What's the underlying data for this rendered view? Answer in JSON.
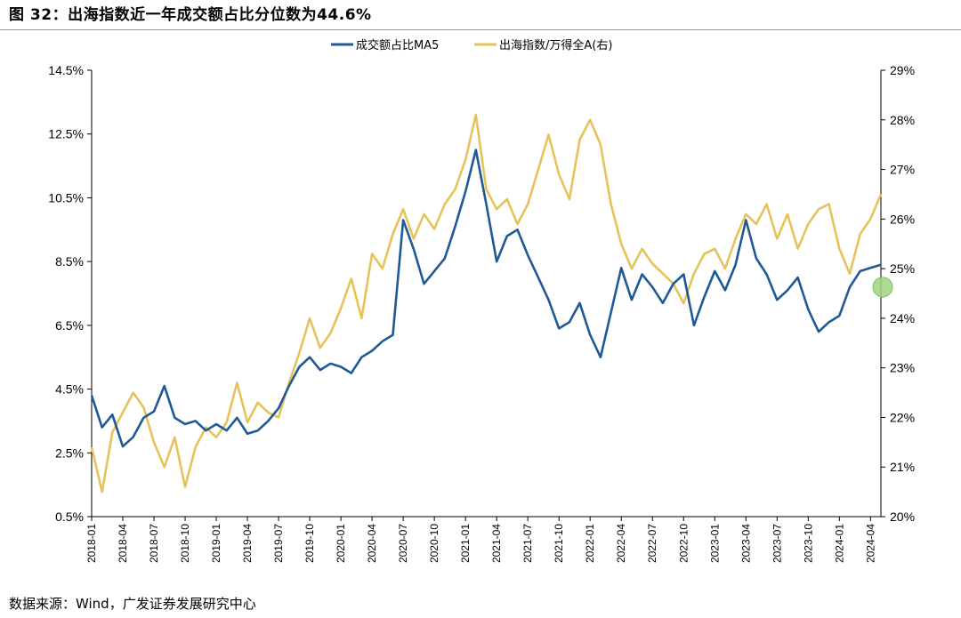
{
  "title": "图 32：出海指数近一年成交额占比分位数为44.6%",
  "source": "数据来源：Wind，广发证券发展研究中心",
  "colors": {
    "left_series": "#1f5a96",
    "right_series": "#e6c35a",
    "marker": "#9fd483"
  },
  "chart_data": {
    "type": "line",
    "title": "出海指数近一年成交额占比分位数为44.6%",
    "x_range": [
      "2018-01",
      "2024-05"
    ],
    "x_ticks": [
      "2018-01",
      "2018-04",
      "2018-07",
      "2018-10",
      "2019-01",
      "2019-04",
      "2019-07",
      "2019-10",
      "2020-01",
      "2020-04",
      "2020-07",
      "2020-10",
      "2021-01",
      "2021-04",
      "2021-07",
      "2021-10",
      "2022-01",
      "2022-04",
      "2022-07",
      "2022-10",
      "2023-01",
      "2023-04",
      "2023-07",
      "2023-10",
      "2024-01",
      "2024-04"
    ],
    "y_left": {
      "min": 0.5,
      "max": 14.5,
      "ticks": [
        "0.5%",
        "2.5%",
        "4.5%",
        "6.5%",
        "8.5%",
        "10.5%",
        "12.5%",
        "14.5%"
      ]
    },
    "y_right": {
      "min": 20,
      "max": 29,
      "ticks": [
        "20%",
        "21%",
        "22%",
        "23%",
        "24%",
        "25%",
        "26%",
        "27%",
        "28%",
        "29%"
      ]
    },
    "legend": [
      "成交额占比MA5",
      "出海指数/万得全A(右)"
    ],
    "legend_position": "top-center",
    "grid": false,
    "series": [
      {
        "name": "成交额占比MA5",
        "axis": "left",
        "data": [
          [
            "2018-01",
            4.3
          ],
          [
            "2018-02",
            3.3
          ],
          [
            "2018-03",
            3.7
          ],
          [
            "2018-04",
            2.7
          ],
          [
            "2018-05",
            3.0
          ],
          [
            "2018-06",
            3.6
          ],
          [
            "2018-07",
            3.8
          ],
          [
            "2018-08",
            4.6
          ],
          [
            "2018-09",
            3.6
          ],
          [
            "2018-10",
            3.4
          ],
          [
            "2018-11",
            3.5
          ],
          [
            "2018-12",
            3.2
          ],
          [
            "2019-01",
            3.4
          ],
          [
            "2019-02",
            3.2
          ],
          [
            "2019-03",
            3.6
          ],
          [
            "2019-04",
            3.1
          ],
          [
            "2019-05",
            3.2
          ],
          [
            "2019-06",
            3.5
          ],
          [
            "2019-07",
            3.9
          ],
          [
            "2019-08",
            4.6
          ],
          [
            "2019-09",
            5.2
          ],
          [
            "2019-10",
            5.5
          ],
          [
            "2019-11",
            5.1
          ],
          [
            "2019-12",
            5.3
          ],
          [
            "2020-01",
            5.2
          ],
          [
            "2020-02",
            5.0
          ],
          [
            "2020-03",
            5.5
          ],
          [
            "2020-04",
            5.7
          ],
          [
            "2020-05",
            6.0
          ],
          [
            "2020-06",
            6.2
          ],
          [
            "2020-07",
            9.8
          ],
          [
            "2020-08",
            8.9
          ],
          [
            "2020-09",
            7.8
          ],
          [
            "2020-10",
            8.2
          ],
          [
            "2020-11",
            8.6
          ],
          [
            "2020-12",
            9.6
          ],
          [
            "2021-01",
            10.7
          ],
          [
            "2021-02",
            12.0
          ],
          [
            "2021-03",
            10.3
          ],
          [
            "2021-04",
            8.5
          ],
          [
            "2021-05",
            9.3
          ],
          [
            "2021-06",
            9.5
          ],
          [
            "2021-07",
            8.7
          ],
          [
            "2021-08",
            8.0
          ],
          [
            "2021-09",
            7.3
          ],
          [
            "2021-10",
            6.4
          ],
          [
            "2021-11",
            6.6
          ],
          [
            "2021-12",
            7.2
          ],
          [
            "2022-01",
            6.2
          ],
          [
            "2022-02",
            5.5
          ],
          [
            "2022-03",
            6.9
          ],
          [
            "2022-04",
            8.3
          ],
          [
            "2022-05",
            7.3
          ],
          [
            "2022-06",
            8.1
          ],
          [
            "2022-07",
            7.7
          ],
          [
            "2022-08",
            7.2
          ],
          [
            "2022-09",
            7.8
          ],
          [
            "2022-10",
            8.1
          ],
          [
            "2022-11",
            6.5
          ],
          [
            "2022-12",
            7.4
          ],
          [
            "2023-01",
            8.2
          ],
          [
            "2023-02",
            7.6
          ],
          [
            "2023-03",
            8.4
          ],
          [
            "2023-04",
            9.8
          ],
          [
            "2023-05",
            8.6
          ],
          [
            "2023-06",
            8.1
          ],
          [
            "2023-07",
            7.3
          ],
          [
            "2023-08",
            7.6
          ],
          [
            "2023-09",
            8.0
          ],
          [
            "2023-10",
            7.0
          ],
          [
            "2023-11",
            6.3
          ],
          [
            "2023-12",
            6.6
          ],
          [
            "2024-01",
            6.8
          ],
          [
            "2024-02",
            7.7
          ],
          [
            "2024-03",
            8.2
          ],
          [
            "2024-04",
            8.3
          ],
          [
            "2024-05",
            8.4
          ]
        ]
      },
      {
        "name": "出海指数/万得全A(右)",
        "axis": "right",
        "data": [
          [
            "2018-01",
            21.4
          ],
          [
            "2018-02",
            20.5
          ],
          [
            "2018-03",
            21.7
          ],
          [
            "2018-04",
            22.1
          ],
          [
            "2018-05",
            22.5
          ],
          [
            "2018-06",
            22.2
          ],
          [
            "2018-07",
            21.5
          ],
          [
            "2018-08",
            21.0
          ],
          [
            "2018-09",
            21.6
          ],
          [
            "2018-10",
            20.6
          ],
          [
            "2018-11",
            21.4
          ],
          [
            "2018-12",
            21.8
          ],
          [
            "2019-01",
            21.6
          ],
          [
            "2019-02",
            21.9
          ],
          [
            "2019-03",
            22.7
          ],
          [
            "2019-04",
            21.9
          ],
          [
            "2019-05",
            22.3
          ],
          [
            "2019-06",
            22.1
          ],
          [
            "2019-07",
            22.0
          ],
          [
            "2019-08",
            22.7
          ],
          [
            "2019-09",
            23.3
          ],
          [
            "2019-10",
            24.0
          ],
          [
            "2019-11",
            23.4
          ],
          [
            "2019-12",
            23.7
          ],
          [
            "2020-01",
            24.2
          ],
          [
            "2020-02",
            24.8
          ],
          [
            "2020-03",
            24.0
          ],
          [
            "2020-04",
            25.3
          ],
          [
            "2020-05",
            25.0
          ],
          [
            "2020-06",
            25.7
          ],
          [
            "2020-07",
            26.2
          ],
          [
            "2020-08",
            25.6
          ],
          [
            "2020-09",
            26.1
          ],
          [
            "2020-10",
            25.8
          ],
          [
            "2020-11",
            26.3
          ],
          [
            "2020-12",
            26.6
          ],
          [
            "2021-01",
            27.2
          ],
          [
            "2021-02",
            28.1
          ],
          [
            "2021-03",
            26.6
          ],
          [
            "2021-04",
            26.2
          ],
          [
            "2021-05",
            26.4
          ],
          [
            "2021-06",
            25.9
          ],
          [
            "2021-07",
            26.3
          ],
          [
            "2021-08",
            27.0
          ],
          [
            "2021-09",
            27.7
          ],
          [
            "2021-10",
            26.9
          ],
          [
            "2021-11",
            26.4
          ],
          [
            "2021-12",
            27.6
          ],
          [
            "2022-01",
            28.0
          ],
          [
            "2022-02",
            27.5
          ],
          [
            "2022-03",
            26.3
          ],
          [
            "2022-04",
            25.5
          ],
          [
            "2022-05",
            25.0
          ],
          [
            "2022-06",
            25.4
          ],
          [
            "2022-07",
            25.1
          ],
          [
            "2022-08",
            24.9
          ],
          [
            "2022-09",
            24.7
          ],
          [
            "2022-10",
            24.3
          ],
          [
            "2022-11",
            24.9
          ],
          [
            "2022-12",
            25.3
          ],
          [
            "2023-01",
            25.4
          ],
          [
            "2023-02",
            25.0
          ],
          [
            "2023-03",
            25.6
          ],
          [
            "2023-04",
            26.1
          ],
          [
            "2023-05",
            25.9
          ],
          [
            "2023-06",
            26.3
          ],
          [
            "2023-07",
            25.6
          ],
          [
            "2023-08",
            26.1
          ],
          [
            "2023-09",
            25.4
          ],
          [
            "2023-10",
            25.9
          ],
          [
            "2023-11",
            26.2
          ],
          [
            "2023-12",
            26.3
          ],
          [
            "2024-01",
            25.4
          ],
          [
            "2024-02",
            24.9
          ],
          [
            "2024-03",
            25.7
          ],
          [
            "2024-04",
            26.0
          ],
          [
            "2024-05",
            26.5
          ]
        ]
      }
    ]
  }
}
